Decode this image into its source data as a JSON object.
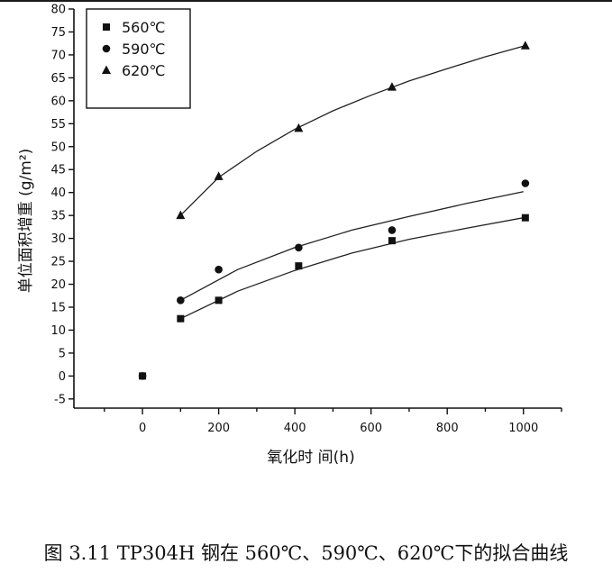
{
  "caption": "图 3.11 TP304H 钢在 560℃、590℃、620℃下的拟合曲线",
  "chart_data": {
    "type": "scatter",
    "xlabel": "氧化时 间(h)",
    "ylabel": "单位面积增重 (g/m²)",
    "xlim": [
      -180,
      1100
    ],
    "ylim": [
      -7,
      80
    ],
    "x_ticks": [
      0,
      200,
      400,
      600,
      800,
      1000
    ],
    "y_ticks": [
      -5,
      0,
      5,
      10,
      15,
      20,
      25,
      30,
      35,
      40,
      45,
      50,
      55,
      60,
      65,
      70,
      75,
      80
    ],
    "legend_position": "top-left",
    "series": [
      {
        "name": "560℃",
        "marker": "square",
        "points": [
          [
            0,
            0
          ],
          [
            100,
            12.5
          ],
          [
            200,
            16.5
          ],
          [
            410,
            24
          ],
          [
            655,
            29.5
          ],
          [
            1005,
            34.5
          ]
        ],
        "fit": [
          [
            100,
            12.5
          ],
          [
            250,
            18.5
          ],
          [
            400,
            23
          ],
          [
            550,
            26.8
          ],
          [
            700,
            29.8
          ],
          [
            850,
            32.2
          ],
          [
            1000,
            34.5
          ]
        ]
      },
      {
        "name": "590℃",
        "marker": "circle",
        "points": [
          [
            0,
            0
          ],
          [
            100,
            16.5
          ],
          [
            200,
            23.2
          ],
          [
            410,
            28
          ],
          [
            655,
            31.8
          ],
          [
            1005,
            42
          ]
        ],
        "fit": [
          [
            100,
            16.5
          ],
          [
            250,
            23.2
          ],
          [
            400,
            28
          ],
          [
            550,
            31.8
          ],
          [
            700,
            34.8
          ],
          [
            850,
            37.6
          ],
          [
            1000,
            40.2
          ]
        ]
      },
      {
        "name": "620℃",
        "marker": "triangle",
        "points": [
          [
            100,
            35
          ],
          [
            200,
            43.5
          ],
          [
            410,
            54
          ],
          [
            655,
            63
          ],
          [
            1005,
            72
          ]
        ],
        "fit": [
          [
            100,
            35
          ],
          [
            200,
            43.3
          ],
          [
            300,
            49
          ],
          [
            400,
            53.8
          ],
          [
            500,
            57.8
          ],
          [
            600,
            61.2
          ],
          [
            700,
            64.3
          ],
          [
            800,
            67
          ],
          [
            900,
            69.6
          ],
          [
            1000,
            71.9
          ]
        ]
      }
    ]
  }
}
